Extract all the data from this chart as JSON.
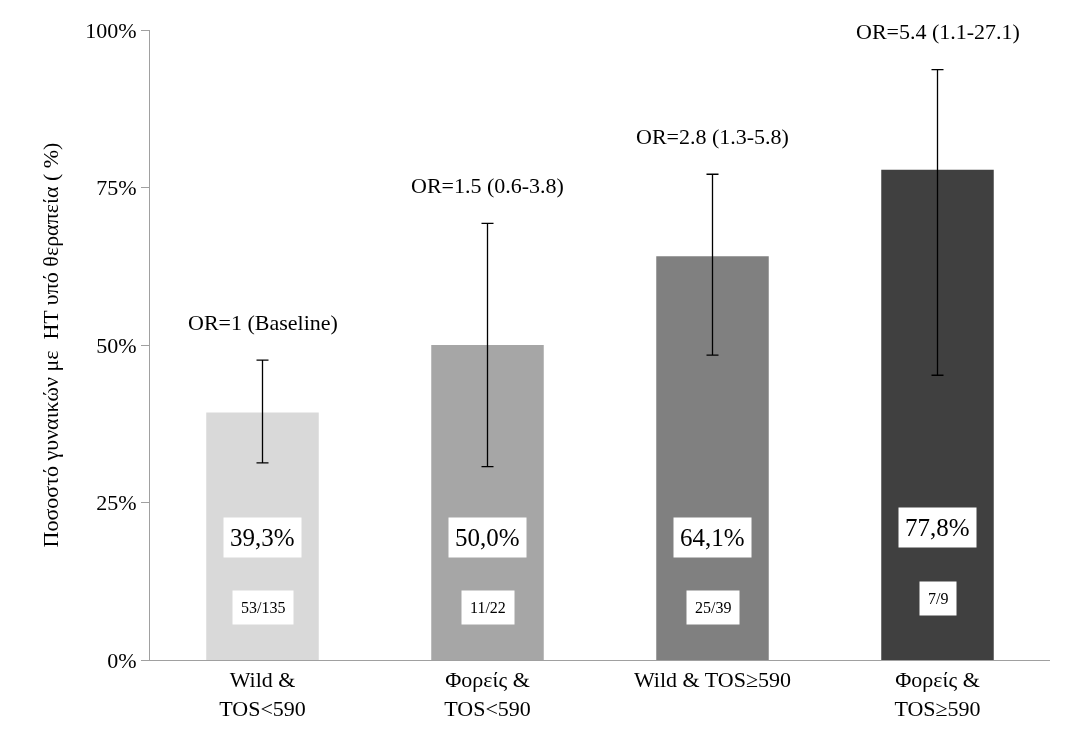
{
  "chart_data": {
    "type": "bar",
    "categories": [
      "Wild &\nTOS<590",
      "Φορείς &\nTOS<590",
      "Wild & TOS≥590",
      "Φορείς &\nTOS≥590"
    ],
    "values": [
      39.3,
      50.0,
      64.1,
      77.8
    ],
    "colors": [
      "#d9d9d9",
      "#a6a6a6",
      "#808080",
      "#404040"
    ],
    "value_labels": [
      "39,3%",
      "50,0%",
      "64,1%",
      "77,8%"
    ],
    "errors": [
      [
        31.3,
        47.6
      ],
      [
        30.7,
        69.3
      ],
      [
        48.4,
        77.1
      ],
      [
        45.2,
        93.7
      ]
    ],
    "ylabel": "Ποσοστό γυναικών με  HT υπό θεραπεία ( %)",
    "ylim": [
      0,
      100
    ],
    "yticks": [
      {
        "value": 0,
        "label": "0%"
      },
      {
        "value": 25,
        "label": "25%"
      },
      {
        "value": 50,
        "label": "50%"
      },
      {
        "value": 75,
        "label": "75%"
      },
      {
        "value": 100,
        "label": "100%"
      }
    ],
    "annotations": [
      "OR=1 (Baseline)",
      "OR=1.5 (0.6-3.8)",
      "OR=2.8 (1.3-5.8)",
      "OR=5.4 (1.1-27.1)",
      "53/135",
      "11/22",
      "25/39",
      "7/9"
    ],
    "legend": false
  }
}
